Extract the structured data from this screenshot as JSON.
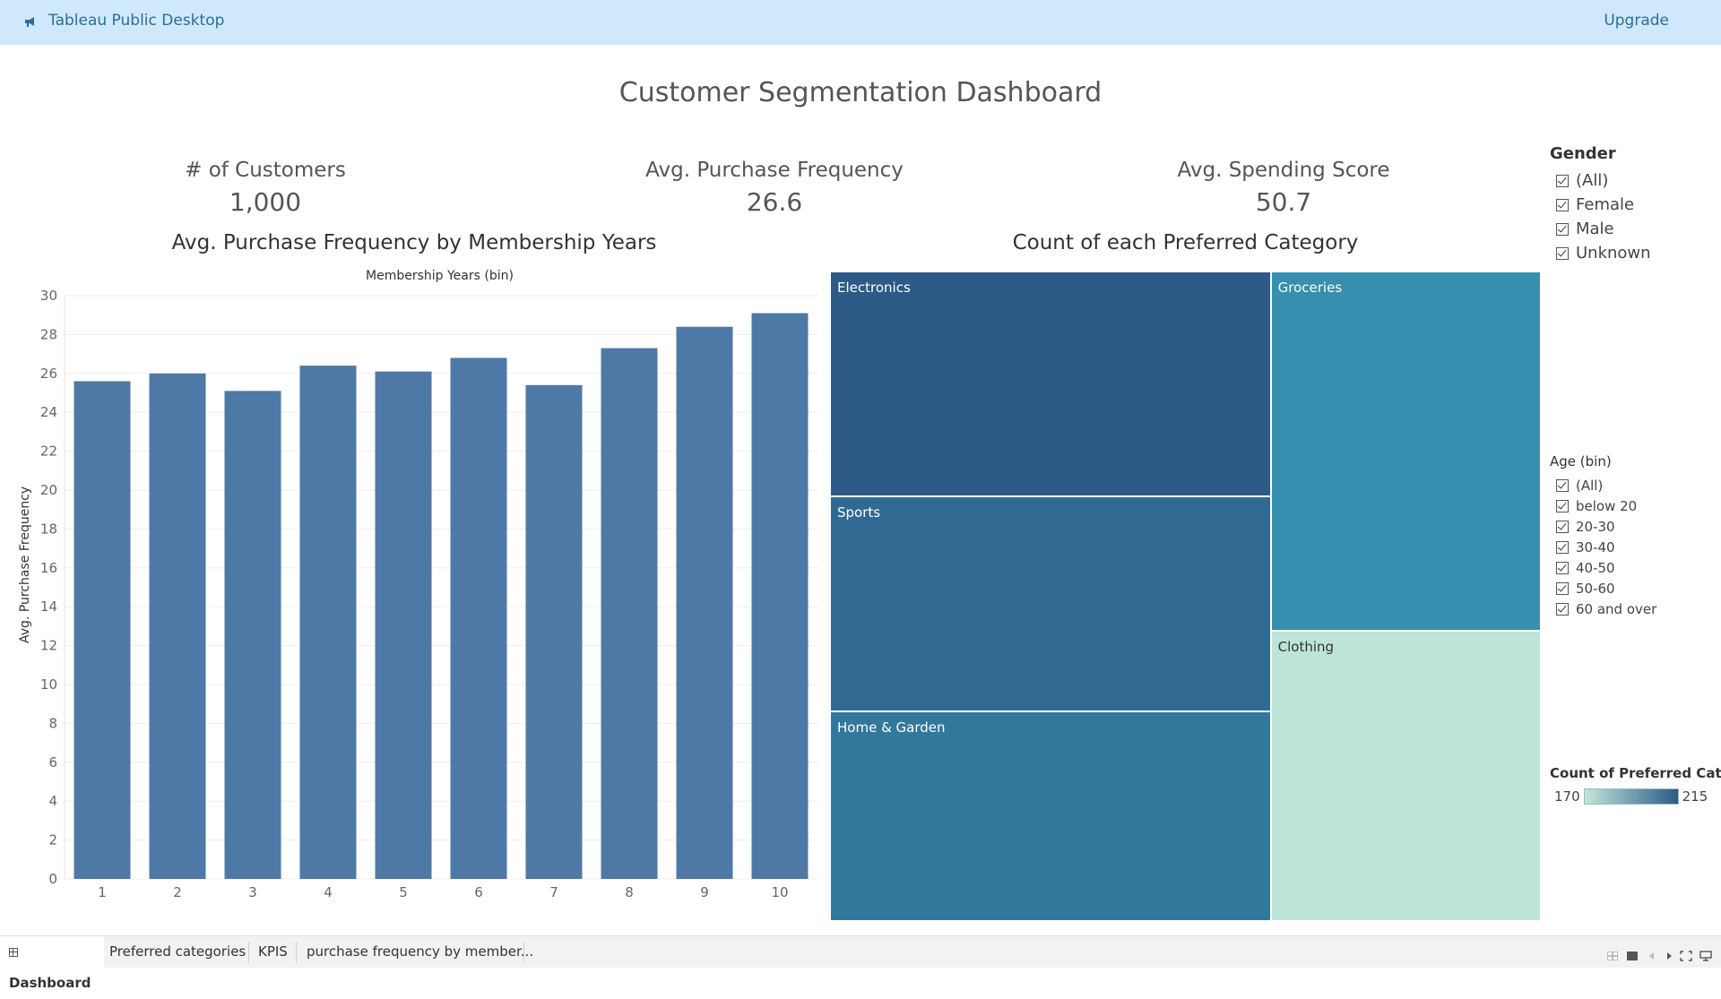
{
  "app": {
    "title": "Tableau Public Desktop",
    "upgrade_label": "Upgrade",
    "accent_color": "#2a6e96",
    "topbar_color": "#cfe8fb"
  },
  "dashboard": {
    "title": "Customer Segmentation Dashboard"
  },
  "kpis": [
    {
      "label": "# of Customers",
      "value": "1,000"
    },
    {
      "label": "Avg. Purchase Frequency",
      "value": "26.6"
    },
    {
      "label": "Avg. Spending Score",
      "value": "50.7"
    }
  ],
  "bar_chart": {
    "title": "Avg. Purchase Frequency by Membership Years",
    "x_axis_title": "Membership Years (bin)",
    "y_axis_title": "Avg. Purchase Frequency",
    "bar_color": "#4e79a7"
  },
  "treemap": {
    "title": "Count of each Preferred Category"
  },
  "chart_data": [
    {
      "type": "bar",
      "title": "Avg. Purchase Frequency by Membership Years",
      "xlabel": "Membership Years (bin)",
      "ylabel": "Avg. Purchase Frequency",
      "categories": [
        "1",
        "2",
        "3",
        "4",
        "5",
        "6",
        "7",
        "8",
        "9",
        "10"
      ],
      "values": [
        25.6,
        26.0,
        25.1,
        26.4,
        26.1,
        26.8,
        25.4,
        27.3,
        28.4,
        29.1
      ],
      "ylim": [
        0,
        30
      ],
      "yticks": [
        0,
        2,
        4,
        6,
        8,
        10,
        12,
        14,
        16,
        18,
        20,
        22,
        24,
        26,
        28,
        30
      ],
      "grid": true
    },
    {
      "type": "treemap",
      "title": "Count of each Preferred Category",
      "categories": [
        "Electronics",
        "Sports",
        "Home & Garden",
        "Groceries",
        "Clothing"
      ],
      "values": [
        215,
        205,
        200,
        210,
        170
      ],
      "colors": [
        "#2d5a86",
        "#306a92",
        "#32789c",
        "#368fae",
        "#bde4d9"
      ],
      "color_scale": {
        "min": 170,
        "max": 215,
        "min_color": "#c2e5dc",
        "max_color": "#2b5a86"
      }
    }
  ],
  "filters": {
    "gender": {
      "title": "Gender",
      "options": [
        "(All)",
        "Female",
        "Male",
        "Unknown"
      ]
    },
    "age": {
      "title": "Age (bin)",
      "options": [
        "(All)",
        "below 20",
        "20-30",
        "30-40",
        "40-50",
        "50-60",
        "60 and over"
      ]
    }
  },
  "legend": {
    "title": "Count of Preferred Cate..",
    "min": "170",
    "max": "215"
  },
  "tabs": [
    {
      "label": "Dashboard",
      "active": true
    },
    {
      "label": "Preferred categories",
      "active": false
    },
    {
      "label": "KPIS",
      "active": false
    },
    {
      "label": "purchase frequency by member...",
      "active": false
    }
  ]
}
